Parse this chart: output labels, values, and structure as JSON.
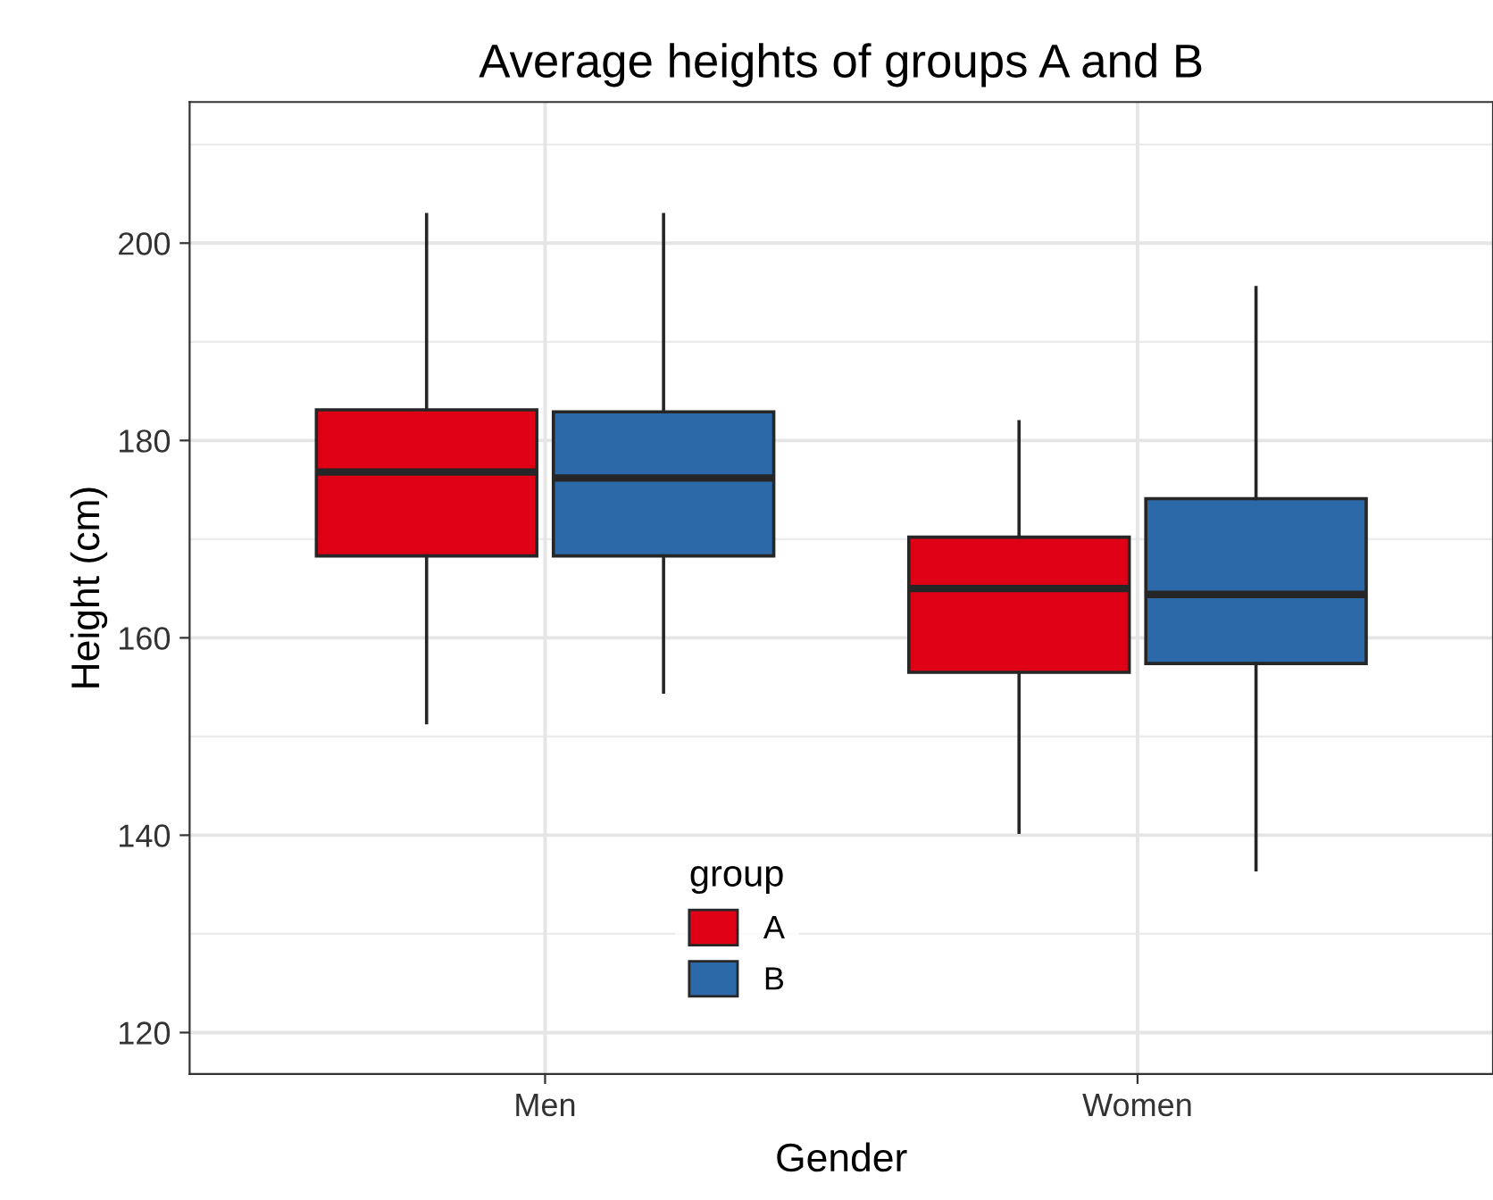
{
  "chart_data": {
    "type": "box",
    "title": "Average heights of groups A and B",
    "xlabel": "Gender",
    "ylabel": "Height (cm)",
    "legend_title": "group",
    "categories": [
      "Men",
      "Women"
    ],
    "series": [
      {
        "name": "A",
        "color": "#df0016",
        "boxes": [
          {
            "low": 151.4,
            "q1": 168.3,
            "median": 176.8,
            "q3": 183.1,
            "high": 202.9
          },
          {
            "low": 140.3,
            "q1": 156.5,
            "median": 165.0,
            "q3": 170.2,
            "high": 181.9
          }
        ]
      },
      {
        "name": "B",
        "color": "#2c69a9",
        "boxes": [
          {
            "low": 154.5,
            "q1": 168.3,
            "median": 176.2,
            "q3": 182.9,
            "high": 202.9
          },
          {
            "low": 136.5,
            "q1": 157.4,
            "median": 164.4,
            "q3": 174.1,
            "high": 195.5
          }
        ]
      }
    ],
    "ylim": [
      115.8,
      214.3
    ],
    "yticks": [
      120,
      140,
      160,
      180,
      200
    ],
    "grid": true,
    "legend": "bottom"
  }
}
